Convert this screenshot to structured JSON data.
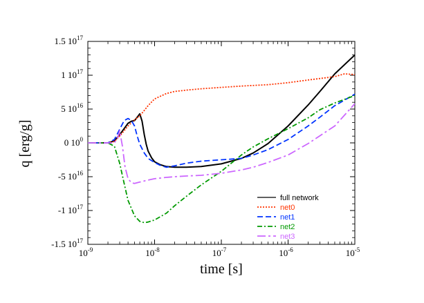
{
  "chart_data": {
    "type": "line",
    "xlabel": "time [s]",
    "ylabel": "q [erg/g]",
    "xscale": "log",
    "xlim": [
      1e-09,
      1e-05
    ],
    "ylim": [
      -1.5e+17,
      1.5e+17
    ],
    "grid": false,
    "legend_position": "bottom-right",
    "x_ticks": [
      {
        "value": 1e-09,
        "base": "10",
        "exp": "-9"
      },
      {
        "value": 1e-08,
        "base": "10",
        "exp": "-8"
      },
      {
        "value": 1e-07,
        "base": "10",
        "exp": "-7"
      },
      {
        "value": 1e-06,
        "base": "10",
        "exp": "-6"
      },
      {
        "value": 1e-05,
        "base": "10",
        "exp": "-5"
      }
    ],
    "y_ticks": [
      {
        "value": 1.5e+17,
        "mant": "1.5 10",
        "exp": "17"
      },
      {
        "value": 1e+17,
        "mant": "1 10",
        "exp": "17"
      },
      {
        "value": 5e+16,
        "mant": "5 10",
        "exp": "16"
      },
      {
        "value": 0,
        "mant": "0 10",
        "exp": "0"
      },
      {
        "value": -5e+16,
        "mant": "-5 10",
        "exp": "16"
      },
      {
        "value": -1e+17,
        "mant": "-1 10",
        "exp": "17"
      },
      {
        "value": -1.5e+17,
        "mant": "-1.5 10",
        "exp": "17"
      }
    ],
    "series": [
      {
        "name": "full network",
        "color": "#000000",
        "dash": "solid",
        "x": [
          1e-09,
          2e-09,
          2.5e-09,
          3e-09,
          4e-09,
          4.5e-09,
          5e-09,
          5.5e-09,
          6e-09,
          6.5e-09,
          7e-09,
          7.5e-09,
          8e-09,
          9e-09,
          1e-08,
          1.2e-08,
          1.5e-08,
          2e-08,
          3e-08,
          5e-08,
          1e-07,
          2e-07,
          3e-07,
          5e-07,
          1e-06,
          2e-06,
          3e-06,
          5e-06,
          1e-05
        ],
        "y": [
          0,
          0,
          3000000000000000.0,
          1.2e+16,
          2.9e+16,
          3.2e+16,
          3.3e+16,
          3.8e+16,
          4.3e+16,
          3.2e+16,
          1.2e+16,
          -2000000000000000.0,
          -1.2e+16,
          -2.2e+16,
          -2.8e+16,
          -3.2e+16,
          -3.5e+16,
          -3.6e+16,
          -3.6e+16,
          -3.5e+16,
          -3.1e+16,
          -2.3e+16,
          -1.5e+16,
          -1000000000000000.0,
          2.5e+16,
          5.6e+16,
          7.6e+16,
          1.02e+17,
          1.3e+17
        ]
      },
      {
        "name": "net0",
        "color": "#ff3300",
        "dash": "dot",
        "x": [
          1e-09,
          2e-09,
          2.5e-09,
          3e-09,
          4e-09,
          5e-09,
          6e-09,
          7e-09,
          8e-09,
          1e-08,
          1.5e-08,
          2e-08,
          3e-08,
          5e-08,
          1e-07,
          2e-07,
          5e-07,
          1e-06,
          2e-06,
          5e-06,
          7e-06,
          1e-05
        ],
        "y": [
          0,
          0,
          2000000000000000.0,
          1e+16,
          2.5e+16,
          3.4e+16,
          4e+16,
          4.8e+16,
          5.5e+16,
          6.5e+16,
          7.3e+16,
          7.6e+16,
          7.8e+16,
          8e+16,
          8.2e+16,
          8.4e+16,
          8.6e+16,
          8.9e+16,
          9.3e+16,
          9.8e+16,
          1.02e+17,
          1.01e+17
        ]
      },
      {
        "name": "net1",
        "color": "#0033ff",
        "dash": "dash",
        "x": [
          1e-09,
          2e-09,
          2.5e-09,
          3e-09,
          3.5e-09,
          4e-09,
          4.5e-09,
          5e-09,
          5.5e-09,
          6e-09,
          7e-09,
          8e-09,
          1e-08,
          1.2e-08,
          1.5e-08,
          2e-08,
          3e-08,
          5e-08,
          1e-07,
          2e-07,
          3e-07,
          5e-07,
          1e-06,
          2e-06,
          3e-06,
          5e-06,
          1e-05
        ],
        "y": [
          0,
          0,
          5000000000000000.0,
          2e+16,
          3.3e+16,
          3.6e+16,
          3.3e+16,
          2.5e+16,
          1e+16,
          -2000000000000000.0,
          -1.5e+16,
          -2.3e+16,
          -2.9e+16,
          -3.3e+16,
          -3.6e+16,
          -3.4e+16,
          -3e+16,
          -2.7e+16,
          -2.5e+16,
          -2.3e+16,
          -1.8e+16,
          -1e+16,
          5000000000000000.0,
          2.5e+16,
          3.8e+16,
          5.5e+16,
          7.2e+16
        ]
      },
      {
        "name": "net2",
        "color": "#009900",
        "dash": "dashdot",
        "x": [
          1e-09,
          2e-09,
          2.5e-09,
          3e-09,
          3.5e-09,
          4e-09,
          5e-09,
          6e-09,
          7e-09,
          8e-09,
          1e-08,
          1.5e-08,
          2e-08,
          3e-08,
          5e-08,
          1e-07,
          2e-07,
          3e-07,
          5e-07,
          1e-06,
          2e-06,
          3e-06,
          5e-06,
          1e-05
        ],
        "y": [
          0,
          0,
          -5000000000000000.0,
          -3e+16,
          -6e+16,
          -8.5e+16,
          -1.08e+17,
          -1.16e+17,
          -1.18e+17,
          -1.17e+17,
          -1.14e+17,
          -1.04e+17,
          -9.3e+16,
          -7.9e+16,
          -6.2e+16,
          -4.2e+16,
          -1.8e+16,
          -6000000000000000.0,
          6000000000000000.0,
          2.1e+16,
          3.7e+16,
          4.9e+16,
          5.9e+16,
          7e+16
        ]
      },
      {
        "name": "net3",
        "color": "#cc66ff",
        "dash": "longdashdot",
        "x": [
          1e-09,
          2e-09,
          2.5e-09,
          2.8e-09,
          3e-09,
          3.3e-09,
          3.6e-09,
          4e-09,
          4.5e-09,
          5e-09,
          6e-09,
          8e-09,
          1e-08,
          1.5e-08,
          2e-08,
          3e-08,
          5e-08,
          1e-07,
          2e-07,
          3e-07,
          5e-07,
          1e-06,
          2e-06,
          5e-06,
          1e-05
        ],
        "y": [
          0,
          0,
          0,
          8000000000000000.0,
          1.8e+16,
          -5000000000000000.0,
          -3.5e+16,
          -5.3e+16,
          -5.9e+16,
          -6e+16,
          -5.8e+16,
          -5.5e+16,
          -5.3e+16,
          -5.1e+16,
          -5e+16,
          -4.9e+16,
          -4.8e+16,
          -4.5e+16,
          -4e+16,
          -3.6e+16,
          -2.9e+16,
          -1.8e+16,
          -1000000000000000.0,
          2.5e+16,
          5.8e+16
        ]
      }
    ]
  }
}
